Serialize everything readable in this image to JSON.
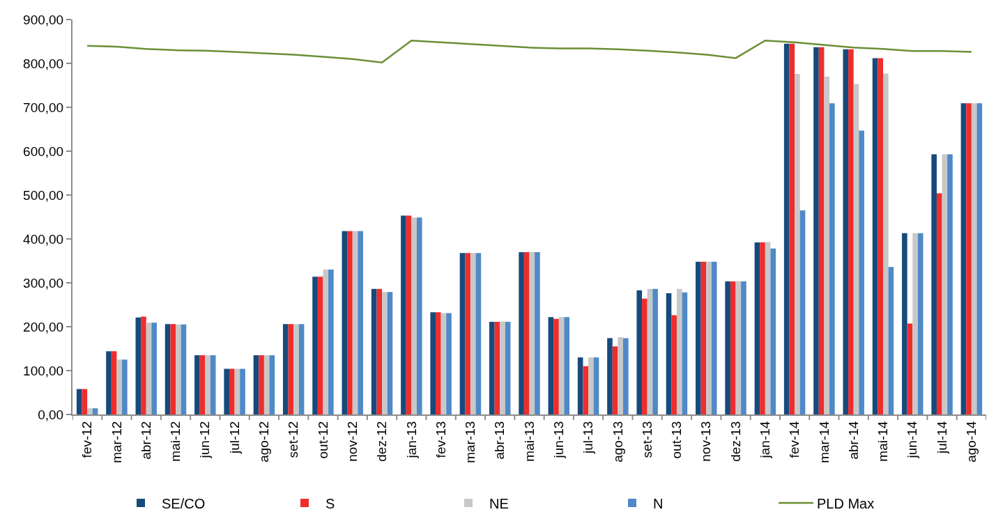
{
  "chart_data": {
    "type": "bar",
    "categories": [
      "fev-12",
      "mar-12",
      "abr-12",
      "mai-12",
      "jun-12",
      "jul-12",
      "ago-12",
      "set-12",
      "out-12",
      "nov-12",
      "dez-12",
      "jan-13",
      "fev-13",
      "mar-13",
      "abr-13",
      "mai-13",
      "jun-13",
      "jul-13",
      "ago-13",
      "set-13",
      "out-13",
      "nov-13",
      "dez-13",
      "jan-14",
      "fev-14",
      "mar-14",
      "abr-14",
      "mai-14",
      "jun-14",
      "jul-14",
      "ago-14"
    ],
    "series": [
      {
        "name": "SE/CO",
        "color": "#174a7c",
        "values": [
          58,
          144,
          221,
          206,
          135,
          104,
          135,
          206,
          314,
          418,
          286,
          453,
          233,
          368,
          211,
          370,
          222,
          130,
          174,
          283,
          276,
          348,
          303,
          392,
          845,
          837,
          832,
          812,
          413,
          593,
          709
        ]
      },
      {
        "name": "S",
        "color": "#ee2d2d",
        "values": [
          58,
          144,
          223,
          206,
          135,
          104,
          135,
          206,
          314,
          418,
          286,
          453,
          233,
          368,
          211,
          370,
          218,
          110,
          155,
          264,
          226,
          348,
          303,
          392,
          845,
          837,
          832,
          812,
          207,
          504,
          709
        ]
      },
      {
        "name": "NE",
        "color": "#c8c8c8",
        "values": [
          14,
          125,
          209,
          205,
          135,
          104,
          135,
          206,
          330,
          418,
          279,
          449,
          231,
          368,
          212,
          370,
          222,
          130,
          176,
          286,
          286,
          348,
          304,
          393,
          776,
          770,
          753,
          777,
          413,
          593,
          709
        ]
      },
      {
        "name": "N",
        "color": "#4f89c8",
        "values": [
          14,
          125,
          209,
          205,
          135,
          104,
          135,
          206,
          330,
          418,
          279,
          449,
          231,
          368,
          211,
          370,
          222,
          130,
          174,
          286,
          278,
          348,
          303,
          378,
          465,
          709,
          647,
          336,
          413,
          593,
          709
        ]
      },
      {
        "name": "PLD Max",
        "type": "line",
        "color": "#6a8f35",
        "values": [
          840,
          838,
          833,
          830,
          829,
          826,
          823,
          820,
          815,
          810,
          802,
          852,
          848,
          844,
          840,
          836,
          834,
          834,
          832,
          829,
          825,
          820,
          812,
          852,
          848,
          842,
          836,
          833,
          828,
          828,
          826
        ]
      }
    ],
    "ylim": [
      0,
      900
    ],
    "yticks": [
      {
        "value": 0,
        "label": "0,00"
      },
      {
        "value": 100,
        "label": "100,00"
      },
      {
        "value": 200,
        "label": "200,00"
      },
      {
        "value": 300,
        "label": "300,00"
      },
      {
        "value": 400,
        "label": "400,00"
      },
      {
        "value": 500,
        "label": "500,00"
      },
      {
        "value": 600,
        "label": "600,00"
      },
      {
        "value": 700,
        "label": "700,00"
      },
      {
        "value": 800,
        "label": "800,00"
      },
      {
        "value": 900,
        "label": "900,00"
      }
    ],
    "grid": false,
    "legend": "bottom"
  }
}
